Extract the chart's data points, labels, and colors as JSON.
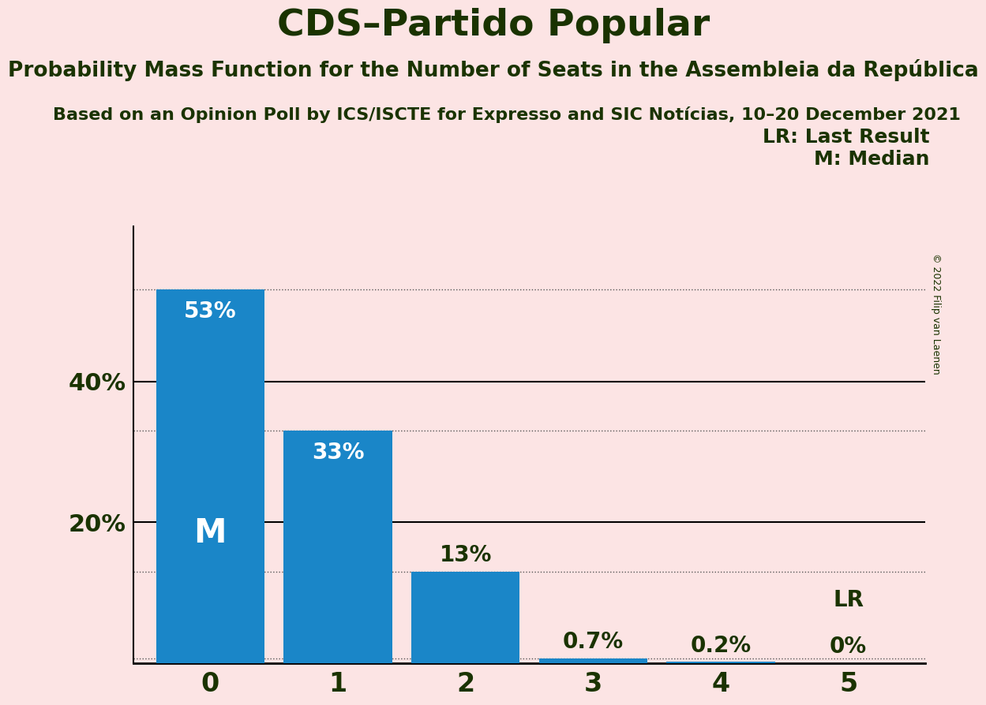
{
  "title": "CDS–Partido Popular",
  "subtitle": "Probability Mass Function for the Number of Seats in the Assembleia da República",
  "source_line": "Based on an Opinion Poll by ICS/ISCTE for Expresso and SIC Notícias, 10–20 December 2021",
  "copyright": "© 2022 Filip van Laenen",
  "categories": [
    0,
    1,
    2,
    3,
    4,
    5
  ],
  "values": [
    53,
    33,
    13,
    0.7,
    0.2,
    0
  ],
  "bar_color": "#1a86c8",
  "background_color": "#fce4e4",
  "text_color": "#1a3300",
  "bar_label_color_inside": "#ffffff",
  "bar_label_color_outside": "#1a3300",
  "median_label": "M",
  "lr_label": "LR",
  "legend_lr": "LR: Last Result",
  "legend_m": "M: Median",
  "yticks": [
    20,
    40
  ],
  "dotted_lines": [
    53,
    33,
    13,
    0.7
  ],
  "solid_lines": [
    40,
    20
  ],
  "ylim": [
    0,
    62
  ],
  "title_fontsize": 34,
  "subtitle_fontsize": 19,
  "source_fontsize": 16,
  "bar_label_fontsize": 20,
  "ytick_fontsize": 22,
  "xtick_fontsize": 24,
  "legend_fontsize": 18,
  "m_label_fontsize": 30,
  "lr_label_fontsize": 20
}
